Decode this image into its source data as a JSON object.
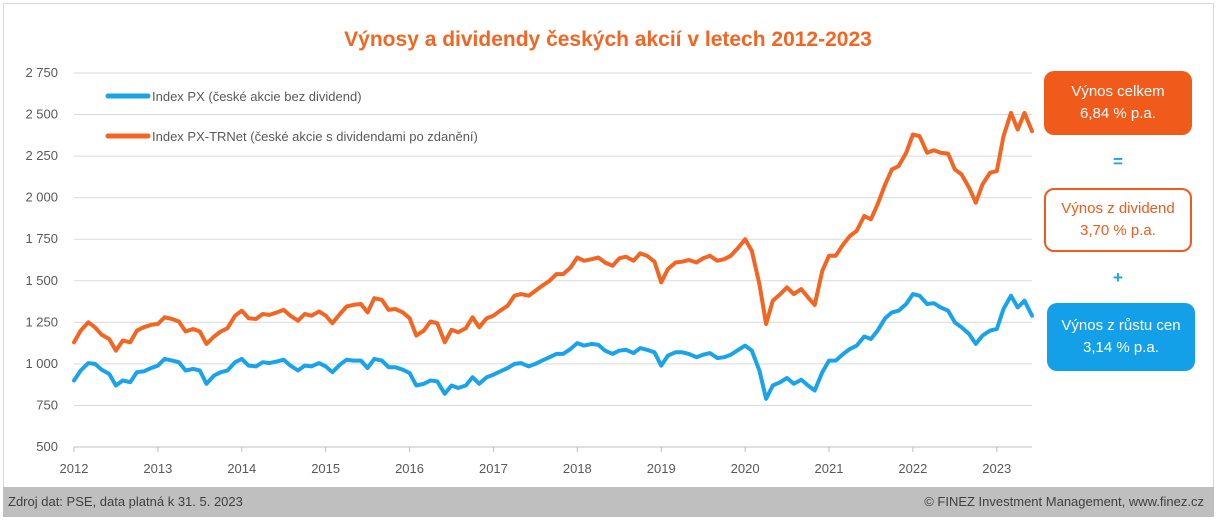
{
  "colors": {
    "px": "#1aa3e8",
    "trnet": "#f26522",
    "grid": "#d9d9d9",
    "accent": "#f05a1a",
    "blue_box": "#14a0e8"
  },
  "side_boxes": {
    "total_label": "Výnos celkem",
    "total_value": "6,84 % p.a.",
    "equals": "=",
    "dividend_label": "Výnos z dividend",
    "dividend_value": "3,70 % p.a.",
    "plus": "+",
    "growth_label": "Výnos z růstu cen",
    "growth_value": "3,14 % p.a."
  },
  "footer": {
    "source": "Zdroj dat: PSE, data platná k 31. 5. 2023",
    "copyright": "© FINEZ Investment Management, www.finez.cz"
  },
  "chart_data": {
    "type": "line",
    "title": "Výnosy a dividendy českých akcií v letech 2012-2023",
    "xlabel": "",
    "ylabel": "",
    "ylim": [
      500,
      2750
    ],
    "xlim": [
      2012,
      2023.42
    ],
    "y_ticks": [
      500,
      750,
      1000,
      1250,
      1500,
      1750,
      2000,
      2250,
      2500,
      2750
    ],
    "y_tick_labels": [
      "500",
      "750",
      "1 000",
      "1 250",
      "1 500",
      "1 750",
      "2 000",
      "2 250",
      "2 500",
      "2 750"
    ],
    "x_ticks": [
      "2012",
      "2013",
      "2014",
      "2015",
      "2016",
      "2017",
      "2018",
      "2019",
      "2020",
      "2021",
      "2022",
      "2023"
    ],
    "grid": "horizontal",
    "legend_position": "top-left",
    "x": [
      2012.0,
      2012.08,
      2012.17,
      2012.25,
      2012.33,
      2012.42,
      2012.5,
      2012.58,
      2012.67,
      2012.75,
      2012.83,
      2012.92,
      2013.0,
      2013.08,
      2013.17,
      2013.25,
      2013.33,
      2013.42,
      2013.5,
      2013.58,
      2013.67,
      2013.75,
      2013.83,
      2013.92,
      2014.0,
      2014.08,
      2014.17,
      2014.25,
      2014.33,
      2014.42,
      2014.5,
      2014.58,
      2014.67,
      2014.75,
      2014.83,
      2014.92,
      2015.0,
      2015.08,
      2015.17,
      2015.25,
      2015.33,
      2015.42,
      2015.5,
      2015.58,
      2015.67,
      2015.75,
      2015.83,
      2015.92,
      2016.0,
      2016.08,
      2016.17,
      2016.25,
      2016.33,
      2016.42,
      2016.5,
      2016.58,
      2016.67,
      2016.75,
      2016.83,
      2016.92,
      2017.0,
      2017.08,
      2017.17,
      2017.25,
      2017.33,
      2017.42,
      2017.5,
      2017.58,
      2017.67,
      2017.75,
      2017.83,
      2017.92,
      2018.0,
      2018.08,
      2018.17,
      2018.25,
      2018.33,
      2018.42,
      2018.5,
      2018.58,
      2018.67,
      2018.75,
      2018.83,
      2018.92,
      2019.0,
      2019.08,
      2019.17,
      2019.25,
      2019.33,
      2019.42,
      2019.5,
      2019.58,
      2019.67,
      2019.75,
      2019.83,
      2019.92,
      2020.0,
      2020.08,
      2020.17,
      2020.25,
      2020.33,
      2020.42,
      2020.5,
      2020.58,
      2020.67,
      2020.75,
      2020.83,
      2020.92,
      2021.0,
      2021.08,
      2021.17,
      2021.25,
      2021.33,
      2021.42,
      2021.5,
      2021.58,
      2021.67,
      2021.75,
      2021.83,
      2021.92,
      2022.0,
      2022.08,
      2022.17,
      2022.25,
      2022.33,
      2022.42,
      2022.5,
      2022.58,
      2022.67,
      2022.75,
      2022.83,
      2022.92,
      2023.0,
      2023.08,
      2023.17,
      2023.25,
      2023.33,
      2023.42
    ],
    "series": [
      {
        "name": "Index PX (české akcie bez dividend)",
        "values": [
          900,
          960,
          1005,
          1000,
          965,
          940,
          870,
          900,
          890,
          950,
          955,
          975,
          990,
          1030,
          1020,
          1010,
          960,
          970,
          960,
          880,
          930,
          950,
          960,
          1010,
          1030,
          990,
          985,
          1010,
          1005,
          1015,
          1025,
          990,
          960,
          990,
          985,
          1005,
          985,
          950,
          995,
          1025,
          1020,
          1020,
          975,
          1030,
          1020,
          980,
          980,
          965,
          945,
          870,
          880,
          900,
          895,
          820,
          870,
          855,
          870,
          920,
          880,
          920,
          935,
          955,
          975,
          1000,
          1005,
          985,
          1000,
          1020,
          1040,
          1060,
          1060,
          1090,
          1125,
          1110,
          1120,
          1115,
          1080,
          1060,
          1080,
          1085,
          1065,
          1095,
          1085,
          1070,
          990,
          1050,
          1070,
          1070,
          1060,
          1040,
          1055,
          1065,
          1035,
          1040,
          1055,
          1085,
          1110,
          1080,
          960,
          790,
          870,
          890,
          915,
          880,
          905,
          870,
          840,
          950,
          1020,
          1020,
          1060,
          1090,
          1110,
          1165,
          1150,
          1200,
          1275,
          1310,
          1320,
          1360,
          1420,
          1410,
          1360,
          1365,
          1340,
          1320,
          1250,
          1220,
          1180,
          1120,
          1170,
          1200,
          1210,
          1330,
          1410,
          1340,
          1380,
          1290
        ]
      },
      {
        "name": "Index PX-TRNet (české akcie s dividendami po zdanění)",
        "values": [
          1130,
          1200,
          1250,
          1220,
          1175,
          1150,
          1080,
          1140,
          1130,
          1200,
          1220,
          1235,
          1240,
          1280,
          1270,
          1255,
          1195,
          1210,
          1195,
          1120,
          1165,
          1195,
          1215,
          1290,
          1320,
          1275,
          1270,
          1300,
          1295,
          1310,
          1325,
          1290,
          1260,
          1300,
          1290,
          1315,
          1290,
          1245,
          1300,
          1345,
          1355,
          1360,
          1310,
          1395,
          1385,
          1325,
          1330,
          1310,
          1275,
          1170,
          1200,
          1255,
          1245,
          1130,
          1205,
          1190,
          1215,
          1280,
          1220,
          1275,
          1290,
          1320,
          1350,
          1410,
          1420,
          1410,
          1440,
          1470,
          1500,
          1540,
          1540,
          1580,
          1640,
          1620,
          1630,
          1640,
          1610,
          1590,
          1635,
          1645,
          1620,
          1665,
          1650,
          1615,
          1490,
          1570,
          1610,
          1615,
          1625,
          1610,
          1635,
          1650,
          1620,
          1630,
          1650,
          1700,
          1750,
          1680,
          1480,
          1240,
          1380,
          1420,
          1460,
          1420,
          1450,
          1400,
          1355,
          1560,
          1650,
          1650,
          1720,
          1770,
          1800,
          1890,
          1870,
          1960,
          2080,
          2170,
          2190,
          2270,
          2380,
          2370,
          2270,
          2285,
          2270,
          2265,
          2170,
          2140,
          2060,
          1970,
          2080,
          2150,
          2160,
          2370,
          2510,
          2410,
          2510,
          2400
        ]
      }
    ]
  }
}
